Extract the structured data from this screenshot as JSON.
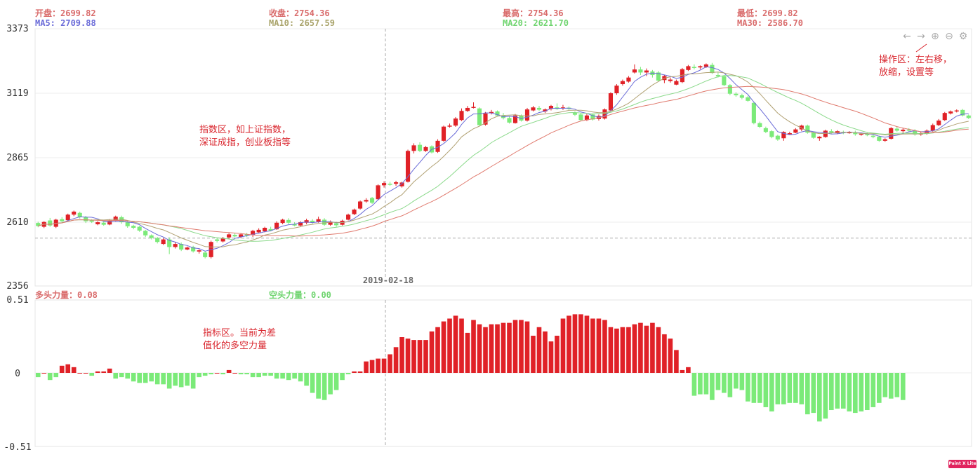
{
  "header": {
    "open_label": "开盘：2699.82",
    "close_label": "收盘：2754.36",
    "high_label": "最高：2754.36",
    "low_label": "最低：2699.82",
    "ma5_label": "MA5: 2709.88",
    "ma10_label": "MA10: 2657.59",
    "ma20_label": "MA20: 2621.70",
    "ma30_label": "MA30: 2586.70"
  },
  "indicator_header": {
    "bull_label": "多头力量：0.08",
    "bear_label": "空头力量：0.00"
  },
  "annotations": {
    "index_area": "指数区，如上证指数，\n深证成指，创业板指等",
    "indicator_area": "指标区。当前为差\n值化的多空力量",
    "toolbar_area": "操作区：左右移，\n放缩，设置等"
  },
  "crosshair_date": "2019-02-18",
  "badge_text": "Paint X Lite",
  "colors": {
    "up": "#e02127",
    "down": "#7bea79",
    "ma5": "#6a6bd8",
    "ma10": "#b1a173",
    "ma20": "#8ad98a",
    "ma30": "#e07a6e",
    "label_red": "#d96b6b",
    "label_blue": "#6a6bd8",
    "label_olive": "#a9a36a",
    "label_green": "#6fd46f"
  },
  "toolbar": {
    "icons": [
      "arrow-left-icon",
      "arrow-right-icon",
      "zoom-in-icon",
      "zoom-out-icon",
      "settings-icon"
    ]
  },
  "chart_data": [
    {
      "type": "candlestick",
      "yaxis_ticks": [
        "3373",
        "3119",
        "2865",
        "2610",
        "2356"
      ],
      "ylim": [
        2356,
        3373
      ],
      "crosshair_date": "2019-02-18",
      "crosshair_value": 2545,
      "candles": [
        [
          2605,
          2593,
          2610,
          2588
        ],
        [
          2590,
          2609,
          2612,
          2585
        ],
        [
          2615,
          2595,
          2625,
          2590
        ],
        [
          2590,
          2618,
          2622,
          2585
        ],
        [
          2620,
          2612,
          2628,
          2605
        ],
        [
          2616,
          2638,
          2642,
          2612
        ],
        [
          2638,
          2650,
          2654,
          2632
        ],
        [
          2645,
          2628,
          2650,
          2622
        ],
        [
          2628,
          2612,
          2633,
          2605
        ],
        [
          2615,
          2610,
          2620,
          2605
        ],
        [
          2600,
          2608,
          2612,
          2596
        ],
        [
          2606,
          2598,
          2610,
          2594
        ],
        [
          2599,
          2614,
          2620,
          2596
        ],
        [
          2614,
          2630,
          2634,
          2610
        ],
        [
          2628,
          2608,
          2634,
          2602
        ],
        [
          2608,
          2592,
          2612,
          2586
        ],
        [
          2594,
          2586,
          2598,
          2580
        ],
        [
          2590,
          2575,
          2594,
          2570
        ],
        [
          2574,
          2556,
          2578,
          2550
        ],
        [
          2556,
          2546,
          2560,
          2540
        ],
        [
          2545,
          2530,
          2550,
          2524
        ],
        [
          2522,
          2540,
          2545,
          2518
        ],
        [
          2540,
          2510,
          2548,
          2482
        ],
        [
          2510,
          2522,
          2530,
          2504
        ],
        [
          2522,
          2500,
          2528,
          2494
        ],
        [
          2500,
          2508,
          2512,
          2497
        ],
        [
          2510,
          2493,
          2515,
          2488
        ],
        [
          2492,
          2497,
          2502,
          2484
        ],
        [
          2488,
          2470,
          2495,
          2465
        ],
        [
          2470,
          2530,
          2535,
          2465
        ],
        [
          2540,
          2534,
          2545,
          2528
        ],
        [
          2532,
          2544,
          2550,
          2528
        ],
        [
          2548,
          2560,
          2565,
          2540
        ],
        [
          2558,
          2552,
          2566,
          2548
        ],
        [
          2550,
          2560,
          2565,
          2545
        ],
        [
          2560,
          2556,
          2566,
          2550
        ],
        [
          2557,
          2574,
          2578,
          2550
        ],
        [
          2568,
          2578,
          2584,
          2566
        ],
        [
          2572,
          2586,
          2590,
          2568
        ],
        [
          2581,
          2575,
          2590,
          2572
        ],
        [
          2580,
          2606,
          2612,
          2578
        ],
        [
          2605,
          2618,
          2622,
          2600
        ],
        [
          2617,
          2606,
          2624,
          2600
        ],
        [
          2600,
          2595,
          2608,
          2592
        ],
        [
          2595,
          2608,
          2612,
          2592
        ],
        [
          2606,
          2616,
          2622,
          2600
        ],
        [
          2614,
          2608,
          2620,
          2602
        ],
        [
          2610,
          2620,
          2630,
          2606
        ],
        [
          2618,
          2598,
          2624,
          2594
        ],
        [
          2598,
          2608,
          2615,
          2594
        ],
        [
          2604,
          2596,
          2610,
          2590
        ],
        [
          2598,
          2614,
          2618,
          2595
        ],
        [
          2618,
          2638,
          2642,
          2615
        ],
        [
          2640,
          2658,
          2662,
          2636
        ],
        [
          2662,
          2690,
          2694,
          2658
        ],
        [
          2690,
          2696,
          2703,
          2685
        ],
        [
          2704,
          2685,
          2708,
          2680
        ],
        [
          2699,
          2754,
          2758,
          2695
        ],
        [
          2754,
          2763,
          2770,
          2745
        ],
        [
          2760,
          2756,
          2768,
          2752
        ],
        [
          2760,
          2766,
          2772,
          2752
        ],
        [
          2750,
          2765,
          2768,
          2745
        ],
        [
          2768,
          2890,
          2895,
          2765
        ],
        [
          2890,
          2912,
          2920,
          2880
        ],
        [
          2914,
          2890,
          2924,
          2885
        ],
        [
          2890,
          2905,
          2910,
          2886
        ],
        [
          2908,
          2884,
          2912,
          2880
        ],
        [
          2886,
          2930,
          2936,
          2882
        ],
        [
          2930,
          2986,
          2990,
          2926
        ],
        [
          2986,
          2990,
          2998,
          2982
        ],
        [
          2990,
          3018,
          3024,
          2985
        ],
        [
          3012,
          3048,
          3058,
          3008
        ],
        [
          3048,
          3060,
          3068,
          3044
        ],
        [
          3062,
          3064,
          3082,
          3058
        ],
        [
          3058,
          2992,
          3062,
          2988
        ],
        [
          2994,
          3038,
          3044,
          2990
        ],
        [
          3042,
          3044,
          3052,
          3034
        ],
        [
          3046,
          3030,
          3050,
          3028
        ],
        [
          3030,
          3020,
          3040,
          3014
        ],
        [
          3020,
          3002,
          3028,
          2998
        ],
        [
          3000,
          3030,
          3036,
          2998
        ],
        [
          3030,
          3010,
          3034,
          3006
        ],
        [
          3010,
          3054,
          3060,
          3006
        ],
        [
          3050,
          3062,
          3068,
          3046
        ],
        [
          3060,
          3053,
          3068,
          3048
        ],
        [
          3046,
          3054,
          3058,
          3040
        ],
        [
          3056,
          3068,
          3072,
          3050
        ],
        [
          3062,
          3056,
          3078,
          3052
        ],
        [
          3058,
          3062,
          3072,
          3052
        ],
        [
          3061,
          3056,
          3066,
          3052
        ],
        [
          3040,
          3033,
          3046,
          3028
        ],
        [
          3034,
          3012,
          3040,
          3008
        ],
        [
          3012,
          3030,
          3036,
          3008
        ],
        [
          3034,
          3014,
          3038,
          3010
        ],
        [
          3016,
          3028,
          3034,
          3010
        ],
        [
          3018,
          3054,
          3058,
          3014
        ],
        [
          3050,
          3118,
          3122,
          3046
        ],
        [
          3118,
          3148,
          3154,
          3112
        ],
        [
          3154,
          3166,
          3172,
          3148
        ],
        [
          3164,
          3180,
          3186,
          3160
        ],
        [
          3200,
          3212,
          3232,
          3196
        ],
        [
          3212,
          3200,
          3222,
          3190
        ],
        [
          3200,
          3208,
          3216,
          3186
        ],
        [
          3204,
          3190,
          3210,
          3180
        ],
        [
          3200,
          3168,
          3206,
          3164
        ],
        [
          3170,
          3186,
          3190,
          3158
        ],
        [
          3166,
          3172,
          3180,
          3160
        ],
        [
          3152,
          3166,
          3172,
          3150
        ],
        [
          3162,
          3213,
          3218,
          3158
        ],
        [
          3210,
          3225,
          3230,
          3206
        ],
        [
          3222,
          3218,
          3232,
          3212
        ],
        [
          3220,
          3225,
          3228,
          3213
        ],
        [
          3222,
          3232,
          3236,
          3218
        ],
        [
          3230,
          3198,
          3238,
          3194
        ],
        [
          3190,
          3185,
          3202,
          3180
        ],
        [
          3185,
          3150,
          3190,
          3146
        ],
        [
          3150,
          3116,
          3154,
          3110
        ],
        [
          3116,
          3110,
          3122,
          3104
        ],
        [
          3110,
          3100,
          3116,
          3094
        ],
        [
          3102,
          3088,
          3108,
          3084
        ],
        [
          3080,
          3000,
          3084,
          2995
        ],
        [
          3000,
          2985,
          3006,
          2980
        ],
        [
          2980,
          2965,
          2986,
          2960
        ],
        [
          2968,
          2945,
          2972,
          2940
        ],
        [
          2950,
          2935,
          2954,
          2930
        ],
        [
          2940,
          2965,
          2968,
          2930
        ],
        [
          2960,
          2960,
          2966,
          2955
        ],
        [
          2962,
          2975,
          2980,
          2960
        ],
        [
          2975,
          2990,
          2994,
          2968
        ],
        [
          2990,
          2962,
          2994,
          2958
        ],
        [
          2962,
          2942,
          2966,
          2938
        ],
        [
          2940,
          2946,
          2948,
          2930
        ],
        [
          2945,
          2970,
          2974,
          2942
        ],
        [
          2968,
          2962,
          2976,
          2958
        ],
        [
          2960,
          2968,
          2972,
          2956
        ],
        [
          2964,
          2960,
          2970,
          2956
        ],
        [
          2962,
          2964,
          2968,
          2958
        ],
        [
          2964,
          2956,
          2970,
          2950
        ],
        [
          2955,
          2958,
          2962,
          2950
        ],
        [
          2956,
          2952,
          2962,
          2948
        ],
        [
          2950,
          2945,
          2956,
          2940
        ],
        [
          2946,
          2930,
          2950,
          2926
        ],
        [
          2930,
          2936,
          2940,
          2926
        ],
        [
          2938,
          2980,
          2984,
          2935
        ],
        [
          2978,
          2970,
          2986,
          2966
        ],
        [
          2968,
          2974,
          2980,
          2962
        ],
        [
          2974,
          2970,
          2980,
          2965
        ],
        [
          2970,
          2955,
          2976,
          2950
        ],
        [
          2955,
          2960,
          2964,
          2950
        ],
        [
          2958,
          2970,
          2975,
          2954
        ],
        [
          2970,
          2992,
          2998,
          2966
        ],
        [
          2992,
          3010,
          3016,
          2988
        ],
        [
          3012,
          3040,
          3044,
          3008
        ],
        [
          3038,
          3046,
          3050,
          3034
        ],
        [
          3048,
          3050,
          3054,
          3042
        ],
        [
          3052,
          3030,
          3056,
          3026
        ],
        [
          3030,
          3020,
          3034,
          3016
        ]
      ]
    },
    {
      "type": "bar",
      "name_bull": "多头力量",
      "name_bear": "空头力量",
      "yaxis_ticks": [
        "0.51",
        "0",
        "-0.51"
      ],
      "ylim": [
        -0.51,
        0.51
      ],
      "values": [
        -0.03,
        0.0,
        -0.05,
        -0.03,
        0.05,
        0.06,
        0.04,
        0.0,
        0.0,
        -0.02,
        0.01,
        0.01,
        0.03,
        -0.04,
        -0.03,
        -0.04,
        -0.06,
        -0.07,
        -0.07,
        -0.06,
        -0.08,
        -0.08,
        -0.11,
        -0.09,
        -0.1,
        -0.09,
        -0.11,
        -0.03,
        -0.02,
        -0.01,
        0.0,
        -0.01,
        0.02,
        0.0,
        -0.01,
        -0.01,
        -0.03,
        -0.03,
        -0.02,
        -0.02,
        -0.04,
        -0.04,
        -0.05,
        -0.04,
        -0.06,
        -0.09,
        -0.14,
        -0.18,
        -0.19,
        -0.15,
        -0.12,
        -0.05,
        -0.01,
        0.01,
        0.01,
        0.08,
        0.09,
        0.1,
        0.1,
        0.13,
        0.18,
        0.25,
        0.24,
        0.23,
        0.23,
        0.23,
        0.29,
        0.32,
        0.36,
        0.38,
        0.4,
        0.38,
        0.28,
        0.37,
        0.34,
        0.32,
        0.34,
        0.34,
        0.35,
        0.35,
        0.37,
        0.37,
        0.36,
        0.26,
        0.32,
        0.29,
        0.22,
        0.26,
        0.38,
        0.4,
        0.41,
        0.41,
        0.4,
        0.38,
        0.38,
        0.37,
        0.32,
        0.31,
        0.32,
        0.32,
        0.34,
        0.35,
        0.33,
        0.35,
        0.32,
        0.27,
        0.24,
        0.16,
        0.02,
        0.04,
        -0.16,
        -0.15,
        -0.15,
        -0.19,
        -0.12,
        -0.14,
        -0.17,
        -0.11,
        -0.12,
        -0.2,
        -0.21,
        -0.21,
        -0.24,
        -0.27,
        -0.22,
        -0.22,
        -0.21,
        -0.21,
        -0.22,
        -0.29,
        -0.28,
        -0.34,
        -0.32,
        -0.26,
        -0.25,
        -0.25,
        -0.27,
        -0.28,
        -0.27,
        -0.26,
        -0.24,
        -0.21,
        -0.17,
        -0.18,
        -0.17,
        -0.19
      ]
    }
  ]
}
